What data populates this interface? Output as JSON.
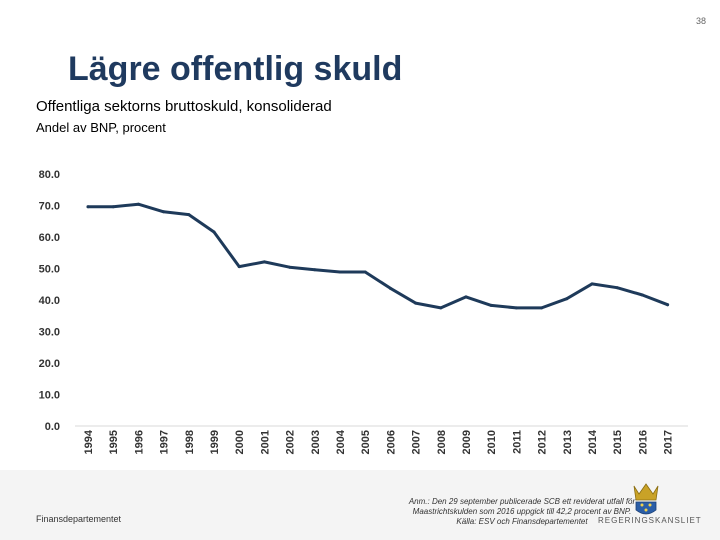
{
  "page_number": "38",
  "title": "Lägre offentlig skuld",
  "subtitle": "Offentliga sektorns bruttoskuld, konsoliderad",
  "unit_label": "Andel av BNP, procent",
  "footer": {
    "department": "Finansdepartementet",
    "note_line1": "Anm.: Den 29 september publicerade SCB ett reviderat utfall för",
    "note_line2": "Maastrichtskulden som 2016 uppgick till 42,2 procent av BNP.",
    "source": "Källa: ESV och Finansdepartementet",
    "logo_text": "REGERINGSKANSLIET"
  },
  "colors": {
    "line": "#1e3a5a",
    "title": "#1f3a5f",
    "gridline": "#d9d9d9"
  },
  "chart_data": {
    "type": "line",
    "title": "Offentliga sektorns bruttoskuld, konsoliderad",
    "ylabel": "Andel av BNP, procent",
    "xlabel": "",
    "categories": [
      "1994",
      "1995",
      "1996",
      "1997",
      "1998",
      "1999",
      "2000",
      "2001",
      "2002",
      "2003",
      "2004",
      "2005",
      "2006",
      "2007",
      "2008",
      "2009",
      "2010",
      "2011",
      "2012",
      "2013",
      "2014",
      "2015",
      "2016",
      "2017"
    ],
    "series": [
      {
        "name": "Bruttoskuld",
        "values": [
          69.6,
          69.6,
          70.4,
          68.0,
          67.1,
          61.6,
          50.6,
          52.1,
          50.4,
          49.6,
          48.9,
          48.9,
          43.7,
          39.0,
          37.5,
          41.0,
          38.3,
          37.5,
          37.5,
          40.4,
          45.1,
          43.9,
          41.6,
          38.5
        ]
      }
    ],
    "ylim": [
      0,
      80
    ],
    "yticks": [
      "0.0",
      "10.0",
      "20.0",
      "30.0",
      "40.0",
      "50.0",
      "60.0",
      "70.0",
      "80.0"
    ],
    "grid": false,
    "legend": "none"
  }
}
